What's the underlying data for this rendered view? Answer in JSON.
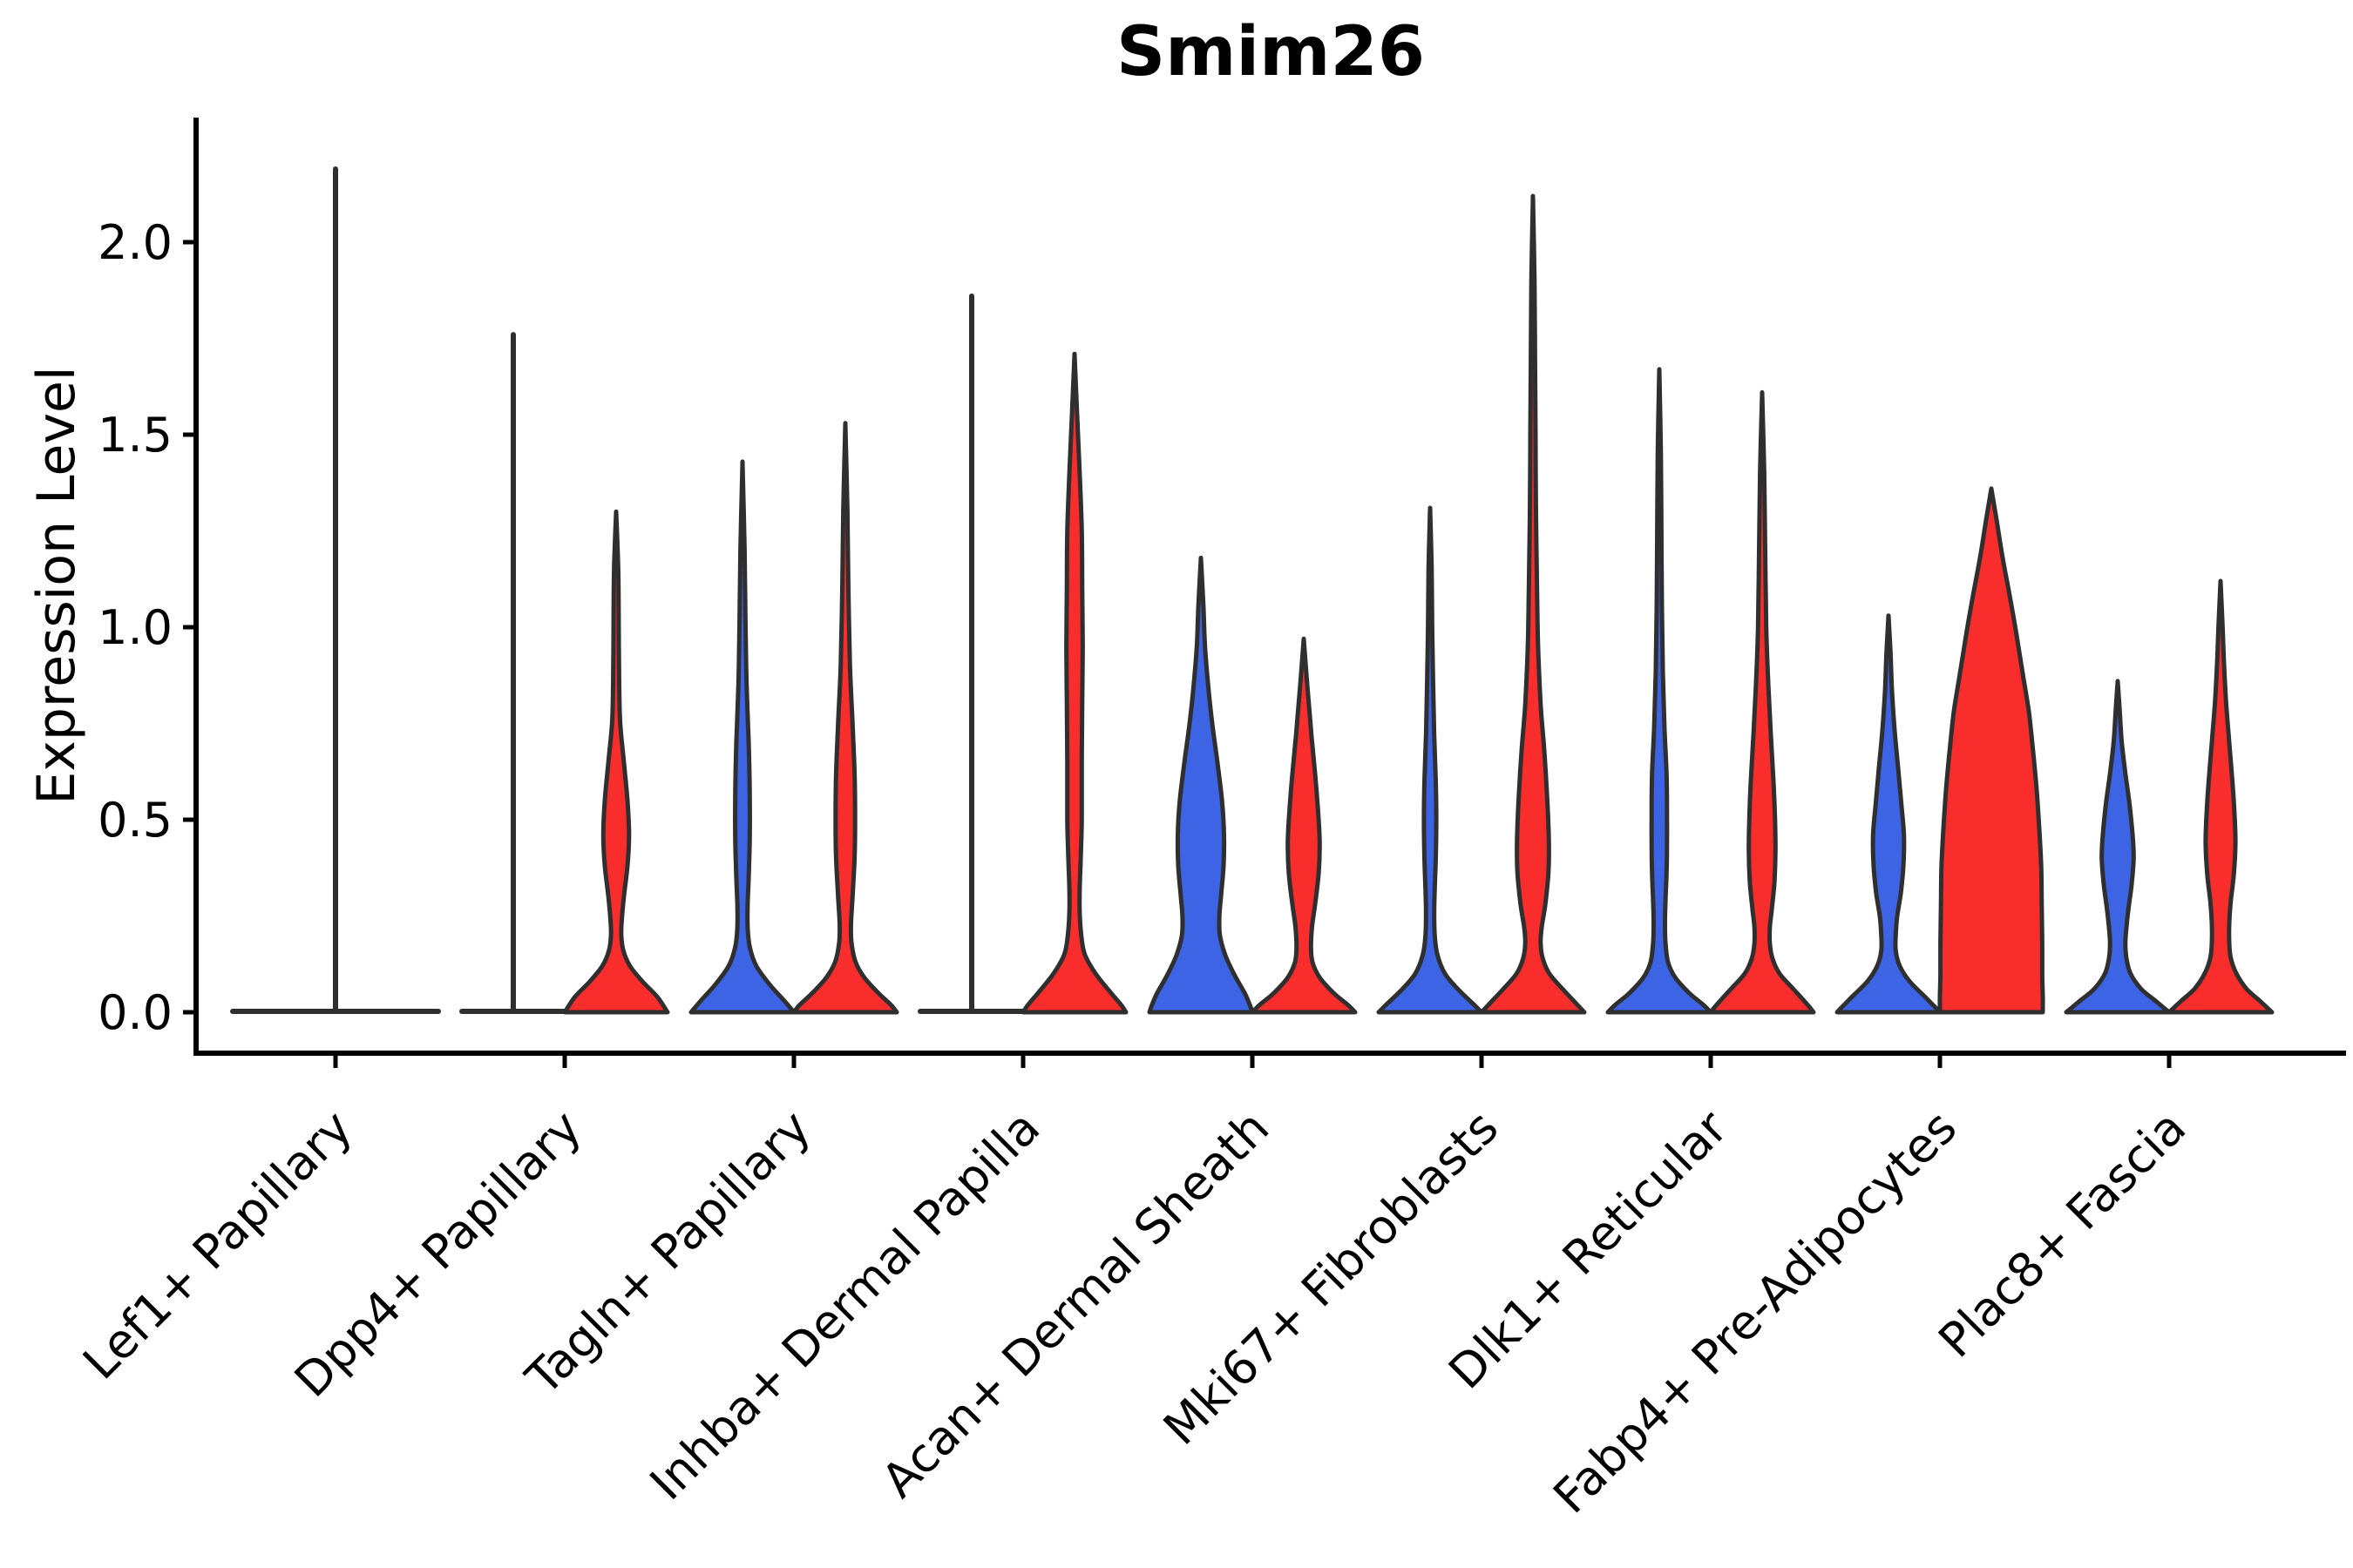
{
  "figure": {
    "title": "Smim26",
    "background_color": "#ffffff"
  },
  "chart_data": {
    "type": "violin",
    "title": "Smim26",
    "ylabel": "Expression Level",
    "xlabel": "",
    "yticks": [
      "0.0",
      "0.5",
      "1.0",
      "1.5",
      "2.0"
    ],
    "ylim": [
      -0.11,
      2.32
    ],
    "grid": false,
    "legend": "none",
    "edge_color": "#2F2F2F",
    "axis_color": "#000000",
    "series": [
      {
        "key": "blue",
        "color": "#3C64E4"
      },
      {
        "key": "red",
        "color": "#FA2D2D"
      }
    ],
    "categories": [
      "Lef1+ Papillary",
      "Dpp4+ Papillary",
      "Tagln+ Papillary",
      "Inhba+ Dermal Papilla",
      "Acan+ Dermal Sheath",
      "Mki67+ Fibroblasts",
      "Dlk1+ Reticular",
      "Fabp4+ Pre-Adipocytes",
      "Plac8+ Fascia"
    ],
    "groups": [
      {
        "category": "Lef1+ Papillary",
        "center_spike_max": 2.19,
        "blue": {
          "kind": "collapsed",
          "spike_max": null,
          "max": 0
        },
        "red": {
          "kind": "collapsed",
          "spike_max": null,
          "max": 0
        }
      },
      {
        "category": "Dpp4+ Papillary",
        "center_spike_max": null,
        "blue": {
          "kind": "collapsed",
          "spike_max": 1.76,
          "max": 1.76
        },
        "red": {
          "kind": "violin",
          "max": 1.3,
          "profile": [
            [
              1.3,
              0.03
            ],
            [
              1.15,
              0.04
            ],
            [
              1.0,
              0.05
            ],
            [
              0.85,
              0.06
            ],
            [
              0.75,
              0.08
            ],
            [
              0.65,
              0.15
            ],
            [
              0.55,
              0.22
            ],
            [
              0.46,
              0.25
            ],
            [
              0.38,
              0.22
            ],
            [
              0.3,
              0.15
            ],
            [
              0.24,
              0.11
            ],
            [
              0.2,
              0.1
            ],
            [
              0.16,
              0.14
            ],
            [
              0.12,
              0.27
            ],
            [
              0.08,
              0.51
            ],
            [
              0.04,
              0.8
            ],
            [
              0.0,
              1.0
            ]
          ]
        }
      },
      {
        "category": "Tagln+ Papillary",
        "center_spike_max": null,
        "blue": {
          "kind": "violin",
          "max": 1.43,
          "profile": [
            [
              1.43,
              0.03
            ],
            [
              1.2,
              0.04
            ],
            [
              1.0,
              0.06
            ],
            [
              0.85,
              0.08
            ],
            [
              0.7,
              0.12
            ],
            [
              0.57,
              0.14
            ],
            [
              0.45,
              0.14
            ],
            [
              0.35,
              0.12
            ],
            [
              0.28,
              0.1
            ],
            [
              0.22,
              0.1
            ],
            [
              0.17,
              0.14
            ],
            [
              0.12,
              0.27
            ],
            [
              0.07,
              0.54
            ],
            [
              0.03,
              0.81
            ],
            [
              0.0,
              1.0
            ]
          ]
        },
        "red": {
          "kind": "violin",
          "max": 1.53,
          "profile": [
            [
              1.53,
              0.03
            ],
            [
              1.3,
              0.04
            ],
            [
              1.1,
              0.06
            ],
            [
              0.9,
              0.09
            ],
            [
              0.75,
              0.14
            ],
            [
              0.62,
              0.18
            ],
            [
              0.5,
              0.19
            ],
            [
              0.4,
              0.18
            ],
            [
              0.3,
              0.14
            ],
            [
              0.23,
              0.11
            ],
            [
              0.18,
              0.12
            ],
            [
              0.13,
              0.2
            ],
            [
              0.09,
              0.37
            ],
            [
              0.05,
              0.64
            ],
            [
              0.02,
              0.88
            ],
            [
              0.0,
              1.0
            ]
          ]
        }
      },
      {
        "category": "Inhba+ Dermal Papilla",
        "center_spike_max": null,
        "blue": {
          "kind": "collapsed",
          "spike_max": 1.86,
          "max": 1.86
        },
        "red": {
          "kind": "violin",
          "max": 1.71,
          "profile": [
            [
              1.71,
              0.03
            ],
            [
              1.55,
              0.05
            ],
            [
              1.4,
              0.1
            ],
            [
              1.25,
              0.14
            ],
            [
              1.1,
              0.15
            ],
            [
              0.95,
              0.16
            ],
            [
              0.8,
              0.15
            ],
            [
              0.65,
              0.14
            ],
            [
              0.5,
              0.14
            ],
            [
              0.4,
              0.12
            ],
            [
              0.32,
              0.1
            ],
            [
              0.26,
              0.1
            ],
            [
              0.2,
              0.13
            ],
            [
              0.15,
              0.2
            ],
            [
              0.1,
              0.41
            ],
            [
              0.05,
              0.71
            ],
            [
              0.02,
              0.9
            ],
            [
              0.0,
              1.0
            ]
          ]
        }
      },
      {
        "category": "Acan+ Dermal Sheath",
        "center_spike_max": null,
        "blue": {
          "kind": "violin",
          "max": 1.18,
          "profile": [
            [
              1.18,
              0.03
            ],
            [
              1.05,
              0.05
            ],
            [
              0.95,
              0.08
            ],
            [
              0.85,
              0.14
            ],
            [
              0.75,
              0.22
            ],
            [
              0.65,
              0.32
            ],
            [
              0.55,
              0.41
            ],
            [
              0.46,
              0.45
            ],
            [
              0.38,
              0.44
            ],
            [
              0.3,
              0.39
            ],
            [
              0.25,
              0.36
            ],
            [
              0.2,
              0.37
            ],
            [
              0.15,
              0.47
            ],
            [
              0.1,
              0.64
            ],
            [
              0.05,
              0.85
            ],
            [
              0.02,
              0.95
            ],
            [
              0.0,
              1.0
            ]
          ]
        },
        "red": {
          "kind": "violin",
          "max": 0.97,
          "profile": [
            [
              0.97,
              0.03
            ],
            [
              0.88,
              0.05
            ],
            [
              0.8,
              0.1
            ],
            [
              0.72,
              0.15
            ],
            [
              0.62,
              0.22
            ],
            [
              0.52,
              0.28
            ],
            [
              0.44,
              0.31
            ],
            [
              0.36,
              0.29
            ],
            [
              0.28,
              0.22
            ],
            [
              0.22,
              0.16
            ],
            [
              0.17,
              0.14
            ],
            [
              0.13,
              0.17
            ],
            [
              0.09,
              0.31
            ],
            [
              0.05,
              0.58
            ],
            [
              0.02,
              0.85
            ],
            [
              0.0,
              1.0
            ]
          ]
        }
      },
      {
        "category": "Mki67+ Fibroblasts",
        "center_spike_max": null,
        "blue": {
          "kind": "violin",
          "max": 1.31,
          "profile": [
            [
              1.31,
              0.03
            ],
            [
              1.15,
              0.03
            ],
            [
              1.0,
              0.04
            ],
            [
              0.85,
              0.06
            ],
            [
              0.72,
              0.08
            ],
            [
              0.6,
              0.11
            ],
            [
              0.5,
              0.12
            ],
            [
              0.4,
              0.11
            ],
            [
              0.32,
              0.09
            ],
            [
              0.26,
              0.08
            ],
            [
              0.2,
              0.09
            ],
            [
              0.15,
              0.14
            ],
            [
              0.1,
              0.29
            ],
            [
              0.06,
              0.54
            ],
            [
              0.02,
              0.85
            ],
            [
              0.0,
              1.0
            ]
          ]
        },
        "red": {
          "kind": "violin",
          "max": 2.12,
          "profile": [
            [
              2.12,
              0.03
            ],
            [
              1.9,
              0.03
            ],
            [
              1.7,
              0.04
            ],
            [
              1.5,
              0.05
            ],
            [
              1.3,
              0.06
            ],
            [
              1.1,
              0.08
            ],
            [
              0.95,
              0.1
            ],
            [
              0.8,
              0.15
            ],
            [
              0.68,
              0.22
            ],
            [
              0.55,
              0.28
            ],
            [
              0.44,
              0.31
            ],
            [
              0.36,
              0.3
            ],
            [
              0.28,
              0.24
            ],
            [
              0.22,
              0.17
            ],
            [
              0.18,
              0.15
            ],
            [
              0.14,
              0.19
            ],
            [
              0.1,
              0.32
            ],
            [
              0.06,
              0.58
            ],
            [
              0.02,
              0.86
            ],
            [
              0.0,
              1.0
            ]
          ]
        }
      },
      {
        "category": "Dlk1+ Reticular",
        "center_spike_max": null,
        "blue": {
          "kind": "violin",
          "max": 1.67,
          "profile": [
            [
              1.67,
              0.03
            ],
            [
              1.45,
              0.03
            ],
            [
              1.25,
              0.04
            ],
            [
              1.05,
              0.05
            ],
            [
              0.88,
              0.07
            ],
            [
              0.74,
              0.1
            ],
            [
              0.62,
              0.14
            ],
            [
              0.52,
              0.15
            ],
            [
              0.44,
              0.15
            ],
            [
              0.36,
              0.14
            ],
            [
              0.29,
              0.12
            ],
            [
              0.23,
              0.11
            ],
            [
              0.18,
              0.12
            ],
            [
              0.13,
              0.17
            ],
            [
              0.09,
              0.31
            ],
            [
              0.05,
              0.58
            ],
            [
              0.02,
              0.85
            ],
            [
              0.0,
              1.0
            ]
          ]
        },
        "red": {
          "kind": "violin",
          "max": 1.61,
          "profile": [
            [
              1.61,
              0.03
            ],
            [
              1.4,
              0.04
            ],
            [
              1.2,
              0.06
            ],
            [
              1.0,
              0.08
            ],
            [
              0.85,
              0.12
            ],
            [
              0.72,
              0.17
            ],
            [
              0.6,
              0.22
            ],
            [
              0.5,
              0.25
            ],
            [
              0.42,
              0.26
            ],
            [
              0.34,
              0.24
            ],
            [
              0.27,
              0.19
            ],
            [
              0.22,
              0.15
            ],
            [
              0.18,
              0.15
            ],
            [
              0.14,
              0.2
            ],
            [
              0.1,
              0.34
            ],
            [
              0.06,
              0.61
            ],
            [
              0.02,
              0.88
            ],
            [
              0.0,
              1.0
            ]
          ]
        }
      },
      {
        "category": "Fabp4+ Pre-Adipocytes",
        "center_spike_max": null,
        "blue": {
          "kind": "violin",
          "max": 1.03,
          "profile": [
            [
              1.03,
              0.03
            ],
            [
              0.93,
              0.04
            ],
            [
              0.83,
              0.07
            ],
            [
              0.73,
              0.12
            ],
            [
              0.63,
              0.19
            ],
            [
              0.54,
              0.25
            ],
            [
              0.46,
              0.3
            ],
            [
              0.38,
              0.29
            ],
            [
              0.31,
              0.24
            ],
            [
              0.25,
              0.17
            ],
            [
              0.2,
              0.14
            ],
            [
              0.16,
              0.14
            ],
            [
              0.12,
              0.22
            ],
            [
              0.08,
              0.41
            ],
            [
              0.04,
              0.71
            ],
            [
              0.01,
              0.93
            ],
            [
              0.0,
              1.0
            ]
          ]
        },
        "red": {
          "kind": "violin",
          "max": 1.36,
          "profile": [
            [
              1.36,
              0.03
            ],
            [
              1.28,
              0.1
            ],
            [
              1.18,
              0.22
            ],
            [
              1.08,
              0.36
            ],
            [
              0.98,
              0.49
            ],
            [
              0.88,
              0.61
            ],
            [
              0.78,
              0.73
            ],
            [
              0.68,
              0.81
            ],
            [
              0.58,
              0.88
            ],
            [
              0.48,
              0.93
            ],
            [
              0.38,
              0.97
            ],
            [
              0.28,
              0.98
            ],
            [
              0.18,
              0.99
            ],
            [
              0.1,
              0.99
            ],
            [
              0.04,
              1.0
            ],
            [
              0.0,
              1.0
            ]
          ]
        }
      },
      {
        "category": "Plac8+ Fascia",
        "center_spike_max": null,
        "blue": {
          "kind": "violin",
          "max": 0.86,
          "profile": [
            [
              0.86,
              0.03
            ],
            [
              0.78,
              0.04
            ],
            [
              0.7,
              0.08
            ],
            [
              0.62,
              0.15
            ],
            [
              0.54,
              0.23
            ],
            [
              0.46,
              0.29
            ],
            [
              0.4,
              0.31
            ],
            [
              0.33,
              0.27
            ],
            [
              0.27,
              0.21
            ],
            [
              0.22,
              0.17
            ],
            [
              0.18,
              0.15
            ],
            [
              0.14,
              0.17
            ],
            [
              0.1,
              0.25
            ],
            [
              0.06,
              0.46
            ],
            [
              0.03,
              0.73
            ],
            [
              0.0,
              1.0
            ]
          ]
        },
        "red": {
          "kind": "violin",
          "max": 1.12,
          "profile": [
            [
              1.12,
              0.03
            ],
            [
              1.0,
              0.04
            ],
            [
              0.9,
              0.07
            ],
            [
              0.8,
              0.11
            ],
            [
              0.7,
              0.17
            ],
            [
              0.6,
              0.23
            ],
            [
              0.52,
              0.27
            ],
            [
              0.44,
              0.29
            ],
            [
              0.36,
              0.26
            ],
            [
              0.29,
              0.2
            ],
            [
              0.23,
              0.17
            ],
            [
              0.18,
              0.17
            ],
            [
              0.14,
              0.2
            ],
            [
              0.1,
              0.31
            ],
            [
              0.06,
              0.51
            ],
            [
              0.03,
              0.76
            ],
            [
              0.0,
              1.0
            ]
          ]
        }
      }
    ]
  }
}
